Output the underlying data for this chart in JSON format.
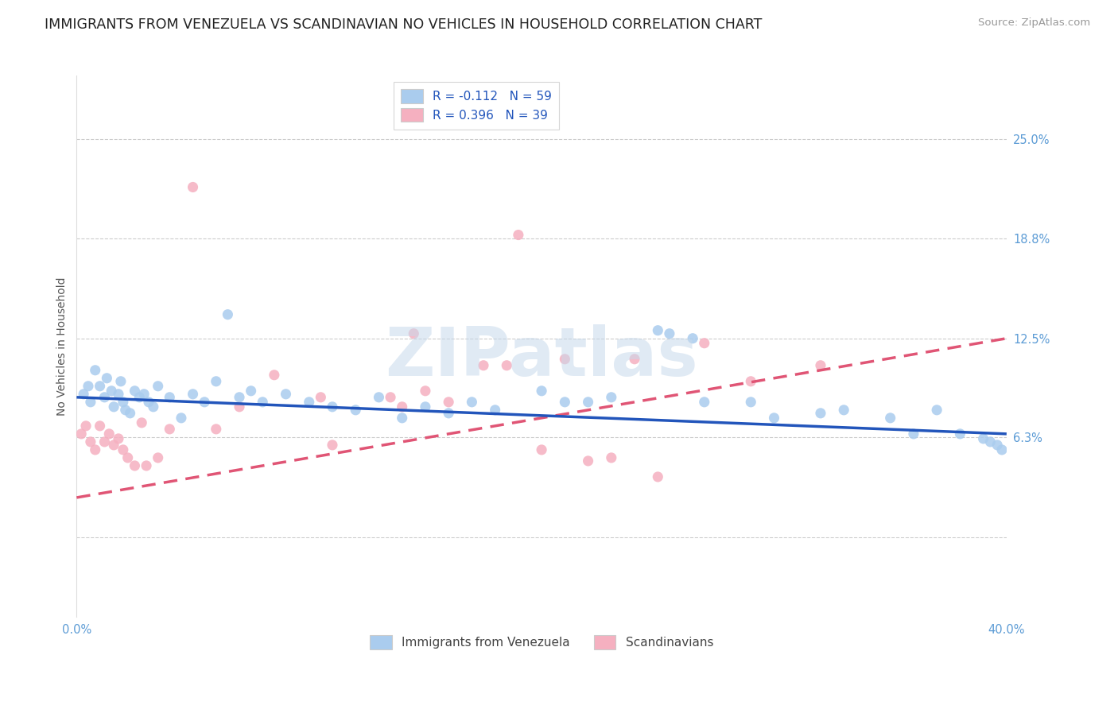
{
  "title": "IMMIGRANTS FROM VENEZUELA VS SCANDINAVIAN NO VEHICLES IN HOUSEHOLD CORRELATION CHART",
  "source": "Source: ZipAtlas.com",
  "ylabel": "No Vehicles in Household",
  "ytick_values": [
    0.0,
    6.3,
    12.5,
    18.8,
    25.0
  ],
  "ytick_labels": [
    "",
    "6.3%",
    "12.5%",
    "18.8%",
    "25.0%"
  ],
  "xlim": [
    0.0,
    40.0
  ],
  "ylim": [
    -5.0,
    29.0
  ],
  "legend1_label0": "R = -0.112   N = 59",
  "legend1_label1": "R = 0.396   N = 39",
  "watermark": "ZIPatlas",
  "blue_scatter_x": [
    0.3,
    0.5,
    0.6,
    0.8,
    1.0,
    1.2,
    1.3,
    1.5,
    1.6,
    1.8,
    1.9,
    2.0,
    2.1,
    2.3,
    2.5,
    2.7,
    2.9,
    3.1,
    3.3,
    3.5,
    4.0,
    4.5,
    5.0,
    5.5,
    6.0,
    6.5,
    7.0,
    7.5,
    8.0,
    9.0,
    10.0,
    11.0,
    12.0,
    13.0,
    14.0,
    15.0,
    16.0,
    17.0,
    18.0,
    20.0,
    21.0,
    22.0,
    23.0,
    25.0,
    27.0,
    29.0,
    30.0,
    32.0,
    33.0,
    35.0,
    36.0,
    37.0,
    38.0,
    39.0,
    39.3,
    39.6,
    39.8,
    25.5,
    26.5
  ],
  "blue_scatter_y": [
    9.0,
    9.5,
    8.5,
    10.5,
    9.5,
    8.8,
    10.0,
    9.2,
    8.2,
    9.0,
    9.8,
    8.5,
    8.0,
    7.8,
    9.2,
    8.8,
    9.0,
    8.5,
    8.2,
    9.5,
    8.8,
    7.5,
    9.0,
    8.5,
    9.8,
    14.0,
    8.8,
    9.2,
    8.5,
    9.0,
    8.5,
    8.2,
    8.0,
    8.8,
    7.5,
    8.2,
    7.8,
    8.5,
    8.0,
    9.2,
    8.5,
    8.5,
    8.8,
    13.0,
    8.5,
    8.5,
    7.5,
    7.8,
    8.0,
    7.5,
    6.5,
    8.0,
    6.5,
    6.2,
    6.0,
    5.8,
    5.5,
    12.8,
    12.5
  ],
  "pink_scatter_x": [
    0.2,
    0.4,
    0.6,
    0.8,
    1.0,
    1.2,
    1.4,
    1.6,
    1.8,
    2.0,
    2.2,
    2.5,
    2.8,
    3.0,
    3.5,
    4.0,
    5.0,
    6.0,
    7.0,
    8.5,
    10.5,
    11.0,
    13.5,
    14.0,
    15.0,
    17.5,
    18.5,
    19.0,
    21.0,
    22.0,
    24.0,
    25.0,
    27.0,
    29.0,
    32.0,
    14.5,
    16.0,
    20.0,
    23.0
  ],
  "pink_scatter_y": [
    6.5,
    7.0,
    6.0,
    5.5,
    7.0,
    6.0,
    6.5,
    5.8,
    6.2,
    5.5,
    5.0,
    4.5,
    7.2,
    4.5,
    5.0,
    6.8,
    22.0,
    6.8,
    8.2,
    10.2,
    8.8,
    5.8,
    8.8,
    8.2,
    9.2,
    10.8,
    10.8,
    19.0,
    11.2,
    4.8,
    11.2,
    3.8,
    12.2,
    9.8,
    10.8,
    12.8,
    8.5,
    5.5,
    5.0
  ],
  "blue_line_x": [
    0.0,
    40.0
  ],
  "blue_line_y": [
    8.8,
    6.5
  ],
  "pink_line_x": [
    0.0,
    40.0
  ],
  "pink_line_y": [
    2.5,
    12.5
  ],
  "blue_line_color": "#2255bb",
  "pink_line_color": "#e05575",
  "blue_scatter_color": "#aaccee",
  "pink_scatter_color": "#f5b0c0",
  "grid_color": "#cccccc",
  "title_color": "#222222",
  "right_axis_color": "#5b9bd5",
  "bottom_axis_color": "#5b9bd5",
  "watermark_r": 0.78,
  "watermark_g": 0.85,
  "watermark_b": 0.92,
  "title_fontsize": 12.5,
  "source_fontsize": 9.5,
  "legend_fontsize": 11,
  "axis_tick_fontsize": 10.5,
  "scatter_size": 90
}
